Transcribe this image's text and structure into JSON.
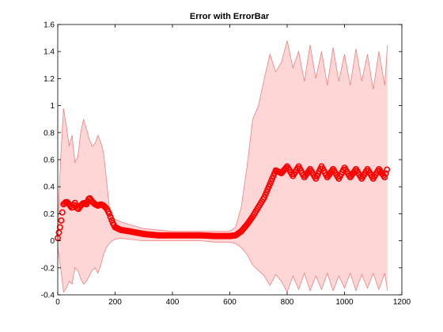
{
  "chart_data": {
    "type": "area",
    "title": "Error with ErrorBar",
    "xlabel": "",
    "ylabel": "",
    "xlim": [
      0,
      1200
    ],
    "ylim": [
      -0.4,
      1.6
    ],
    "grid": false,
    "x_ticks": [
      "0",
      "200",
      "400",
      "600",
      "800",
      "1000",
      "1200"
    ],
    "y_ticks": [
      "-0.4",
      "-0.2",
      "0",
      "0.2",
      "0.4",
      "0.6",
      "0.8",
      "1",
      "1.2",
      "1.4",
      "1.6"
    ],
    "colors": {
      "series": "#ff0000",
      "band_fill": "#ffd6d6",
      "band_edge": "#f08080"
    },
    "series": [
      {
        "x": [
          0,
          10,
          20,
          30,
          40,
          50,
          60,
          70,
          80,
          90,
          100,
          110,
          120,
          130,
          140,
          150,
          160,
          170,
          180,
          190,
          200,
          220,
          250,
          300,
          350,
          400,
          450,
          500,
          550,
          600,
          620,
          640,
          660,
          680,
          700,
          720,
          740,
          760,
          780,
          800,
          820,
          840,
          860,
          880,
          900,
          920,
          940,
          960,
          980,
          1000,
          1020,
          1040,
          1060,
          1080,
          1100,
          1120,
          1140,
          1150
        ],
        "values": [
          0.02,
          0.12,
          0.27,
          0.29,
          0.27,
          0.24,
          0.28,
          0.23,
          0.26,
          0.28,
          0.27,
          0.32,
          0.29,
          0.27,
          0.26,
          0.27,
          0.26,
          0.24,
          0.2,
          0.14,
          0.1,
          0.08,
          0.07,
          0.05,
          0.04,
          0.04,
          0.04,
          0.04,
          0.035,
          0.035,
          0.04,
          0.07,
          0.12,
          0.18,
          0.25,
          0.32,
          0.42,
          0.52,
          0.5,
          0.55,
          0.48,
          0.55,
          0.47,
          0.53,
          0.46,
          0.55,
          0.47,
          0.53,
          0.46,
          0.54,
          0.47,
          0.53,
          0.46,
          0.53,
          0.46,
          0.53,
          0.47,
          0.54
        ],
        "upper": [
          0.1,
          0.6,
          0.98,
          0.85,
          0.7,
          0.78,
          0.58,
          0.62,
          0.8,
          0.9,
          0.83,
          0.75,
          0.7,
          0.72,
          0.78,
          0.73,
          0.65,
          0.45,
          0.25,
          0.18,
          0.16,
          0.14,
          0.12,
          0.09,
          0.08,
          0.07,
          0.07,
          0.07,
          0.07,
          0.07,
          0.1,
          0.25,
          0.55,
          0.9,
          1.0,
          1.2,
          1.38,
          1.25,
          1.32,
          1.48,
          1.28,
          1.4,
          1.18,
          1.45,
          1.2,
          1.4,
          1.15,
          1.43,
          1.18,
          1.38,
          1.15,
          1.42,
          1.18,
          1.38,
          1.12,
          1.4,
          1.15,
          1.45
        ],
        "lower": [
          -0.05,
          -0.2,
          -0.38,
          -0.35,
          -0.3,
          -0.32,
          -0.2,
          -0.22,
          -0.28,
          -0.32,
          -0.3,
          -0.26,
          -0.22,
          -0.2,
          -0.24,
          -0.18,
          -0.1,
          -0.05,
          -0.02,
          0.0,
          0.01,
          0.02,
          0.01,
          0.0,
          0.0,
          0.0,
          0.0,
          0.0,
          -0.01,
          -0.01,
          -0.02,
          -0.05,
          -0.1,
          -0.18,
          -0.22,
          -0.26,
          -0.33,
          -0.25,
          -0.3,
          -0.38,
          -0.26,
          -0.36,
          -0.24,
          -0.37,
          -0.26,
          -0.36,
          -0.24,
          -0.37,
          -0.26,
          -0.35,
          -0.24,
          -0.37,
          -0.25,
          -0.35,
          -0.24,
          -0.36,
          -0.24,
          -0.37
        ]
      }
    ]
  }
}
